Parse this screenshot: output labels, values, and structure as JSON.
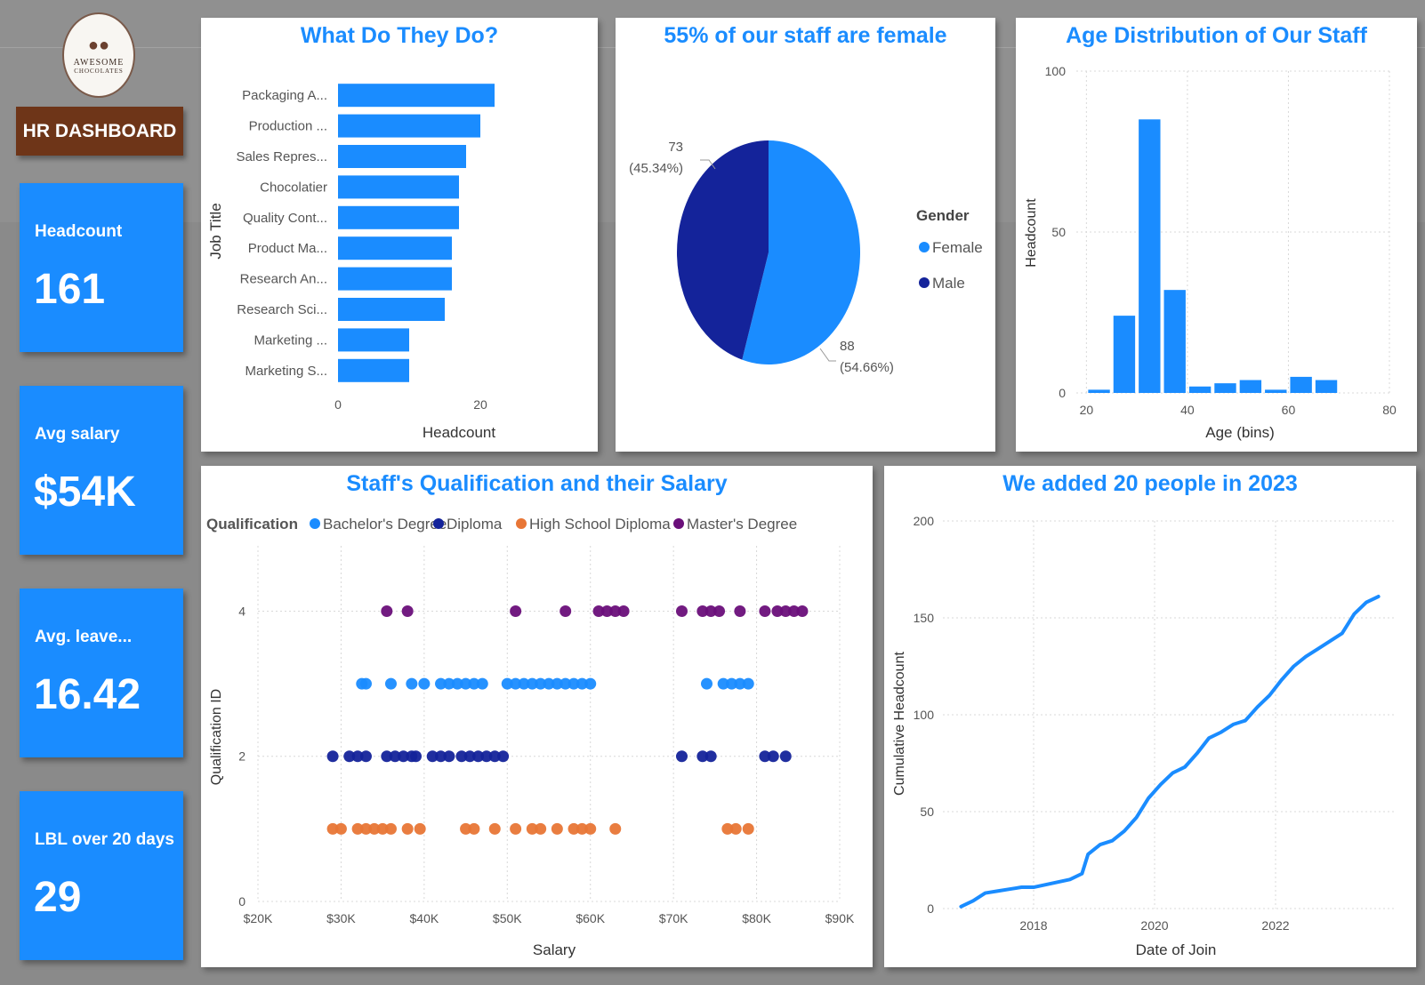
{
  "brand": {
    "logo_line1": "AWESOME",
    "logo_line2": "CHOCOLATES"
  },
  "header": {
    "title": "HR DASHBOARD"
  },
  "kpis": [
    {
      "label": "Headcount",
      "value": "161"
    },
    {
      "label": "Avg salary",
      "value": "$54K"
    },
    {
      "label": "Avg. leave...",
      "value": "16.42"
    },
    {
      "label": "LBL over 20 days",
      "value": "29"
    }
  ],
  "colors": {
    "accent": "#1a8cff",
    "navy": "#14239a",
    "orange": "#e87636",
    "purple": "#6a0f7a",
    "brown": "#6e3518"
  },
  "chart_data": [
    {
      "id": "jobs",
      "type": "bar",
      "orientation": "horizontal",
      "title": "What Do They Do?",
      "xlabel": "Headcount",
      "ylabel": "Job Title",
      "categories": [
        "Packaging A...",
        "Production ...",
        "Sales Repres...",
        "Chocolatier",
        "Quality Cont...",
        "Product Ma...",
        "Research An...",
        "Research Sci...",
        "Marketing ...",
        "Marketing S..."
      ],
      "values": [
        22,
        20,
        18,
        17,
        17,
        16,
        16,
        15,
        10,
        10
      ],
      "xlim": [
        0,
        28
      ],
      "xticks": [
        0,
        20
      ]
    },
    {
      "id": "gender",
      "type": "pie",
      "title": "55% of our staff are female",
      "legend_title": "Gender",
      "labels": [
        "Female",
        "Male"
      ],
      "values": [
        88,
        73
      ],
      "percent_labels": [
        "(54.66%)",
        "(45.34%)"
      ],
      "legend_position": "right"
    },
    {
      "id": "age",
      "type": "bar",
      "title": "Age Distribution of Our Staff",
      "xlabel": "Age (bins)",
      "ylabel": "Headcount",
      "bin_starts": [
        20,
        25,
        30,
        35,
        40,
        45,
        50,
        55,
        60,
        65
      ],
      "bin_width": 5,
      "values": [
        1,
        24,
        85,
        32,
        2,
        3,
        4,
        1,
        5,
        4
      ],
      "xlim": [
        18,
        80
      ],
      "ylim": [
        0,
        100
      ],
      "xticks": [
        20,
        40,
        60,
        80
      ],
      "yticks": [
        0,
        50,
        100
      ]
    },
    {
      "id": "qualification",
      "type": "scatter",
      "title": "Staff's Qualification and their Salary",
      "xlabel": "Salary",
      "ylabel": "Qualification ID",
      "legend_title": "Qualification",
      "legend_position": "top-left",
      "xlim": [
        20000,
        90000
      ],
      "ylim": [
        0,
        4.9
      ],
      "xticks": [
        20000,
        30000,
        40000,
        50000,
        60000,
        70000,
        80000,
        90000
      ],
      "xtick_labels": [
        "$20K",
        "$30K",
        "$40K",
        "$50K",
        "$60K",
        "$70K",
        "$80K",
        "$90K"
      ],
      "yticks": [
        0,
        2,
        4
      ],
      "series": [
        {
          "name": "Bachelor's Degree",
          "y": 3,
          "x": [
            32500,
            33000,
            36000,
            38500,
            40000,
            42000,
            43000,
            44000,
            45000,
            46000,
            47000,
            50000,
            51000,
            52000,
            53000,
            54000,
            55000,
            56000,
            57000,
            58000,
            59000,
            60000,
            74000,
            76000,
            77000,
            78000,
            79000
          ]
        },
        {
          "name": "Diploma",
          "y": 2,
          "x": [
            29000,
            31000,
            32000,
            33000,
            35500,
            36500,
            37500,
            38500,
            39000,
            41000,
            42000,
            43000,
            44500,
            45500,
            46500,
            47500,
            48500,
            49500,
            71000,
            73500,
            74500,
            81000,
            82000,
            83500
          ]
        },
        {
          "name": "High School Diploma",
          "y": 1,
          "x": [
            29000,
            30000,
            32000,
            33000,
            34000,
            35000,
            36000,
            38000,
            39500,
            45000,
            46000,
            48500,
            51000,
            53000,
            54000,
            56000,
            58000,
            59000,
            60000,
            63000,
            76500,
            77500,
            79000
          ]
        },
        {
          "name": "Master's Degree",
          "y": 4,
          "x": [
            35500,
            38000,
            51000,
            57000,
            61000,
            62000,
            63000,
            64000,
            71000,
            73500,
            74500,
            75500,
            78000,
            81000,
            82500,
            83500,
            84500,
            85500
          ]
        }
      ]
    },
    {
      "id": "cumulative",
      "type": "line",
      "title": "We added 20 people in 2023",
      "xlabel": "Date of Join",
      "ylabel": "Cumulative Headcount",
      "xlim": [
        2016.5,
        2024.0
      ],
      "ylim": [
        0,
        200
      ],
      "xticks": [
        2018,
        2020,
        2022
      ],
      "yticks": [
        0,
        50,
        100,
        150,
        200
      ],
      "x": [
        2016.8,
        2017.0,
        2017.2,
        2017.4,
        2017.6,
        2017.8,
        2018.0,
        2018.3,
        2018.6,
        2018.8,
        2018.9,
        2019.1,
        2019.3,
        2019.5,
        2019.7,
        2019.9,
        2020.1,
        2020.3,
        2020.5,
        2020.7,
        2020.9,
        2021.1,
        2021.3,
        2021.5,
        2021.7,
        2021.9,
        2022.1,
        2022.3,
        2022.5,
        2022.7,
        2022.9,
        2023.1,
        2023.3,
        2023.5,
        2023.7
      ],
      "values": [
        1,
        4,
        8,
        9,
        10,
        11,
        11,
        13,
        15,
        18,
        28,
        33,
        35,
        40,
        47,
        57,
        64,
        70,
        73,
        80,
        88,
        91,
        95,
        97,
        104,
        110,
        118,
        125,
        130,
        134,
        138,
        142,
        152,
        158,
        161
      ]
    }
  ]
}
